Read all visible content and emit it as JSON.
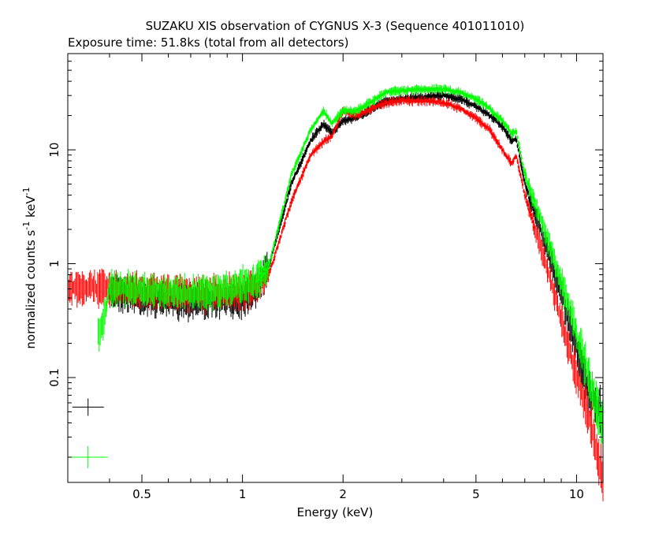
{
  "chart_data": {
    "type": "scatter",
    "title": "SUZAKU XIS observation of CYGNUS X-3 (Sequence 401011010)",
    "subtitle": "Exposure time: 51.8ks (total from all detectors)",
    "xlabel": "Energy (keV)",
    "ylabel_main": "normalized counts s",
    "ylabel_exp1": "-1",
    "ylabel_mid": " keV",
    "ylabel_exp2": "-1",
    "x_scale": "log",
    "y_scale": "log",
    "xlim": [
      0.3,
      12
    ],
    "ylim": [
      0.012,
      70
    ],
    "x_ticks": [
      {
        "v": 0.5,
        "label": "0.5"
      },
      {
        "v": 1,
        "label": "1"
      },
      {
        "v": 2,
        "label": "2"
      },
      {
        "v": 5,
        "label": "5"
      },
      {
        "v": 10,
        "label": "10"
      }
    ],
    "y_ticks": [
      {
        "v": 0.1,
        "label": "0.1"
      },
      {
        "v": 1,
        "label": "1"
      },
      {
        "v": 10,
        "label": "10"
      }
    ],
    "grid": false,
    "legend": "none",
    "series": [
      {
        "color": "#000000",
        "x": [
          0.4,
          0.5,
          0.6,
          0.7,
          0.8,
          0.9,
          1.0,
          1.1,
          1.2,
          1.4,
          1.6,
          1.75,
          1.85,
          2.0,
          2.2,
          2.5,
          2.7,
          3.0,
          3.5,
          4.0,
          4.5,
          5.0,
          5.5,
          6.0,
          6.4,
          6.6,
          7.0,
          8.0,
          9.0,
          10.0,
          11.0,
          12.0
        ],
        "y": [
          0.58,
          0.5,
          0.48,
          0.47,
          0.47,
          0.48,
          0.49,
          0.6,
          0.95,
          5.0,
          12.0,
          17.0,
          14.0,
          18.0,
          19.0,
          24.0,
          27.0,
          28.0,
          29.0,
          30.0,
          28.0,
          24.0,
          20.0,
          16.0,
          12.0,
          12.5,
          5.0,
          1.6,
          0.55,
          0.18,
          0.07,
          0.045
        ]
      },
      {
        "color": "#ff0000",
        "x": [
          0.3,
          0.35,
          0.4,
          0.5,
          0.6,
          0.7,
          0.8,
          0.9,
          1.0,
          1.1,
          1.2,
          1.4,
          1.6,
          1.75,
          1.85,
          2.0,
          2.2,
          2.5,
          2.7,
          3.0,
          3.5,
          4.0,
          4.5,
          5.0,
          5.5,
          6.0,
          6.4,
          6.6,
          7.0,
          8.0,
          9.0,
          10.0,
          11.0,
          12.0
        ],
        "y": [
          0.62,
          0.62,
          0.6,
          0.58,
          0.56,
          0.55,
          0.55,
          0.56,
          0.58,
          0.62,
          0.8,
          3.5,
          9.0,
          12.0,
          13.0,
          22.0,
          20.0,
          24.0,
          26.0,
          27.0,
          27.0,
          26.0,
          23.0,
          19.0,
          15.0,
          10.0,
          7.5,
          9.0,
          4.0,
          1.1,
          0.32,
          0.1,
          0.04,
          0.013
        ]
      },
      {
        "color": "#00ff00",
        "x": [
          0.37,
          0.38,
          0.39,
          0.4,
          0.5,
          0.6,
          0.7,
          0.8,
          0.9,
          1.0,
          1.1,
          1.2,
          1.4,
          1.6,
          1.75,
          1.85,
          2.0,
          2.2,
          2.5,
          2.7,
          3.0,
          3.5,
          4.0,
          4.5,
          5.0,
          5.5,
          6.0,
          6.4,
          6.6,
          7.0,
          8.0,
          9.0,
          10.0,
          11.0,
          12.0
        ],
        "y": [
          0.24,
          0.28,
          0.4,
          0.62,
          0.58,
          0.56,
          0.55,
          0.57,
          0.6,
          0.65,
          0.7,
          0.95,
          6.0,
          15.0,
          22.0,
          17.0,
          22.0,
          22.0,
          28.0,
          32.0,
          33.0,
          34.0,
          34.0,
          32.0,
          28.0,
          23.0,
          18.0,
          14.0,
          14.5,
          6.0,
          2.0,
          0.7,
          0.24,
          0.09,
          0.035
        ]
      }
    ],
    "corner_markers": [
      {
        "color": "#000000",
        "x": 0.345,
        "y": 0.055
      },
      {
        "color": "#00ff00",
        "x": 0.345,
        "y": 0.02
      }
    ]
  }
}
